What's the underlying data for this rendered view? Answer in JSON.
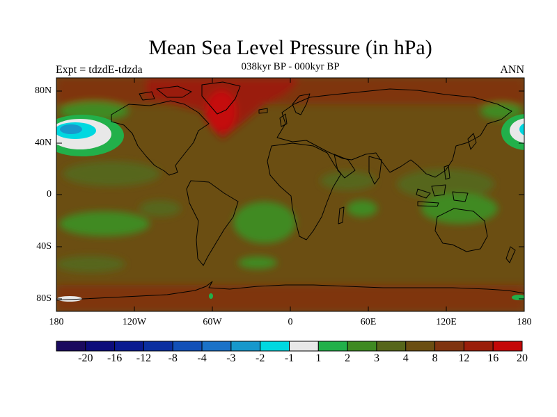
{
  "header": {
    "title": "Mean Sea Level Pressure (in hPa)",
    "subtitle": "038kyr BP - 000kyr BP",
    "experiment": "Expt = tdzdE-tdzda",
    "season": "ANN"
  },
  "axes": {
    "lat_labels": [
      "80N",
      "40N",
      "0",
      "40S",
      "80S"
    ],
    "lon_labels": [
      "180",
      "120W",
      "60W",
      "0",
      "60E",
      "120E",
      "180"
    ]
  },
  "colorbar": {
    "labels": [
      "-20",
      "-16",
      "-12",
      "-8",
      "-4",
      "-3",
      "-2",
      "-1",
      "1",
      "2",
      "3",
      "4",
      "8",
      "12",
      "16",
      "20"
    ],
    "colors": [
      "#1a0a5e",
      "#0c0c7a",
      "#0a1a90",
      "#0b2fa0",
      "#1250b8",
      "#1a72c8",
      "#1798cc",
      "#00d8e0",
      "#e8e8e8",
      "#22b04a",
      "#3f8a22",
      "#56661a",
      "#6b4e12",
      "#7f3410",
      "#9a1e0a",
      "#c40808"
    ]
  },
  "chart_data": {
    "type": "heatmap",
    "title": "Mean Sea Level Pressure (in hPa)",
    "subtitle": "038kyr BP - 000kyr BP",
    "experiment": "Expt = tdzdE-tdzda",
    "season": "ANN",
    "variable": "mean sea level pressure difference",
    "units": "hPa",
    "projection": "cylindrical equidistant",
    "x_range": [
      -180,
      180
    ],
    "y_range": [
      -90,
      90
    ],
    "contour_levels": [
      -20,
      -16,
      -12,
      -8,
      -4,
      -3,
      -2,
      -1,
      1,
      2,
      3,
      4,
      8,
      12,
      16,
      20
    ],
    "regions": [
      {
        "name": "background",
        "category": "4 to 8"
      },
      {
        "name": "greenland-arctic high",
        "category": "12 to 20"
      },
      {
        "name": "north pacific low center",
        "category": "-4 to -2"
      },
      {
        "name": "north pacific low ring",
        "category": "-1 to 2"
      },
      {
        "name": "south atlantic",
        "category": "2 to 3"
      },
      {
        "name": "maritime continent",
        "category": "2 to 3"
      },
      {
        "name": "southern ocean band",
        "category": "8 to 12"
      }
    ]
  }
}
